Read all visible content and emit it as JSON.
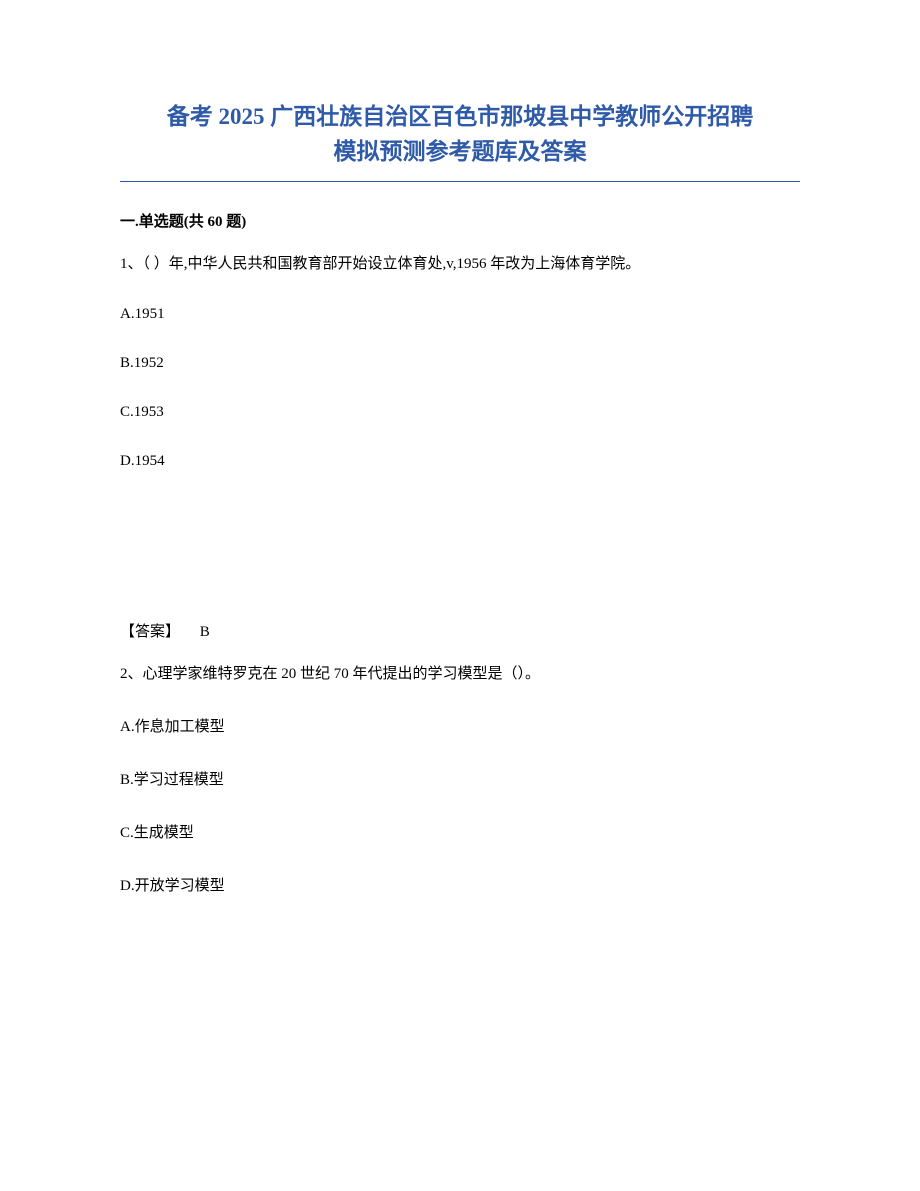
{
  "title_line1": "备考 2025 广西壮族自治区百色市那坡县中学教师公开招聘",
  "title_line2": "模拟预测参考题库及答案",
  "section_header": "一.单选题(共 60 题)",
  "q1": {
    "text": "1、（ ）年,中华人民共和国教育部开始设立体育处,v,1956 年改为上海体育学院。",
    "options": {
      "a": "A.1951",
      "b": "B.1952",
      "c": "C.1953",
      "d": "D.1954"
    },
    "answer_label": "【答案】",
    "answer_value": "B"
  },
  "q2": {
    "text": "2、心理学家维特罗克在 20 世纪 70 年代提出的学习模型是（）。",
    "options": {
      "a": "A.作息加工模型",
      "b": "B.学习过程模型",
      "c": "C.生成模型",
      "d": "D.开放学习模型"
    }
  },
  "colors": {
    "title_color": "#2e5aa8",
    "text_color": "#000000",
    "background": "#ffffff",
    "border_color": "#2e5aa8"
  },
  "typography": {
    "title_fontsize": 23,
    "body_fontsize": 15,
    "font_family": "SimSun"
  }
}
